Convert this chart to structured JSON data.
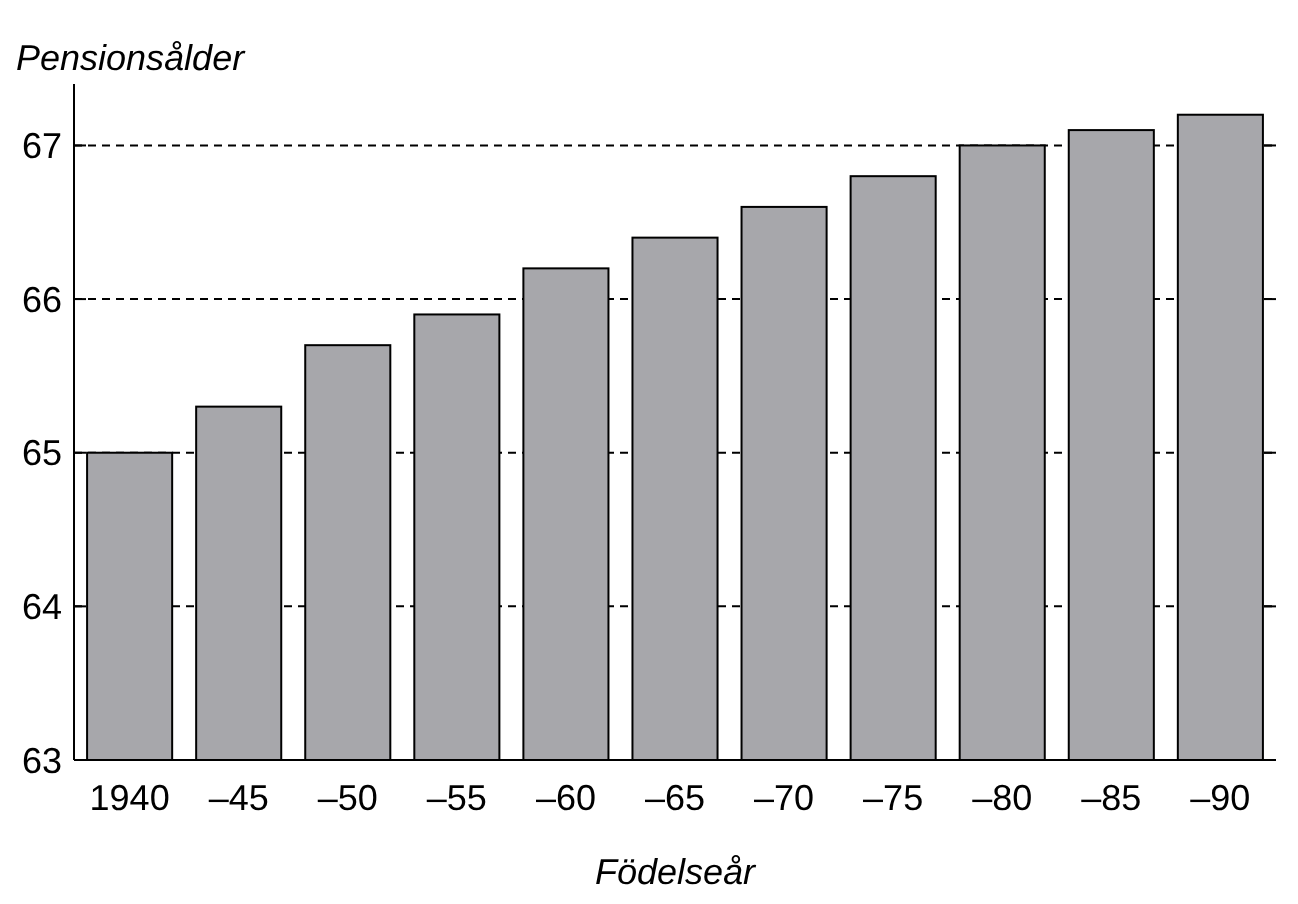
{
  "chart_data": {
    "type": "bar",
    "ylabel": "Pensionsålder",
    "xlabel": "Födelseår",
    "categories": [
      "1940",
      "–45",
      "–50",
      "–55",
      "–60",
      "–65",
      "–70",
      "–75",
      "–80",
      "–85",
      "–90"
    ],
    "values": [
      65.0,
      65.3,
      65.7,
      65.9,
      66.2,
      66.4,
      66.6,
      66.8,
      67.0,
      67.1,
      67.2
    ],
    "color": "#a7a7ab",
    "ylim": [
      63,
      67.4
    ],
    "yticks": [
      63,
      64,
      65,
      66,
      67
    ],
    "grid": "y",
    "line_style": "dashed"
  }
}
